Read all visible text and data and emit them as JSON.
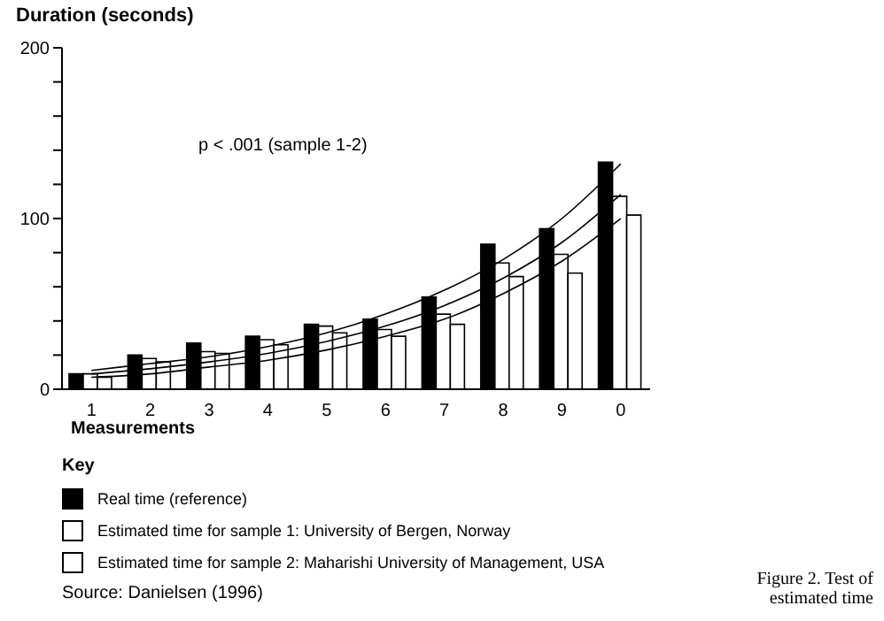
{
  "chart_data": {
    "type": "bar",
    "ylabel": "Duration (seconds)",
    "xlabel": "Measurements",
    "legend_title": "Key",
    "legend": "bottom",
    "grid": false,
    "marker": "none",
    "line_style": "solid",
    "categories": [
      "1",
      "2",
      "3",
      "4",
      "5",
      "6",
      "7",
      "8",
      "9",
      "0"
    ],
    "ylim": [
      0,
      200
    ],
    "yticks": [
      0,
      {
        "value": 20,
        "label": null
      },
      {
        "value": 40,
        "label": null
      },
      {
        "value": 60,
        "label": null
      },
      {
        "value": 80,
        "label": null
      },
      100,
      {
        "value": 120,
        "label": null
      },
      {
        "value": 140,
        "label": null
      },
      {
        "value": 160,
        "label": null
      },
      {
        "value": 180,
        "label": null
      },
      200
    ],
    "series": [
      {
        "name": "Real time (reference)",
        "color": "#000000",
        "values": [
          9,
          20,
          27,
          31,
          38,
          41,
          54,
          85,
          94,
          133
        ]
      },
      {
        "name": "Estimated time for sample 1: University of Bergen, Norway",
        "color": "#ffffff",
        "values": [
          9,
          18,
          22,
          29,
          37,
          35,
          44,
          74,
          79,
          113
        ]
      },
      {
        "name": "Estimated time for sample 2: Maharishi University of Management, USA",
        "color": "#ffffff",
        "values": [
          7,
          16,
          21,
          26,
          33,
          31,
          38,
          66,
          68,
          102
        ]
      },
      {
        "type": "line",
        "color": "#000000",
        "values": [
          11,
          15,
          19,
          25,
          33,
          44,
          58,
          76,
          100,
          132
        ]
      },
      {
        "type": "line",
        "color": "#000000",
        "values": [
          9,
          12,
          16,
          21,
          28,
          37,
          49,
          65,
          86,
          114
        ]
      },
      {
        "type": "line",
        "color": "#000000",
        "values": [
          7,
          9,
          13,
          17,
          23,
          31,
          41,
          56,
          75,
          100
        ]
      }
    ],
    "annotations": [
      "p < .001 (sample 1-2)",
      "Source: Danielsen (1996)",
      "Figure 2. Test of estimated time"
    ]
  }
}
